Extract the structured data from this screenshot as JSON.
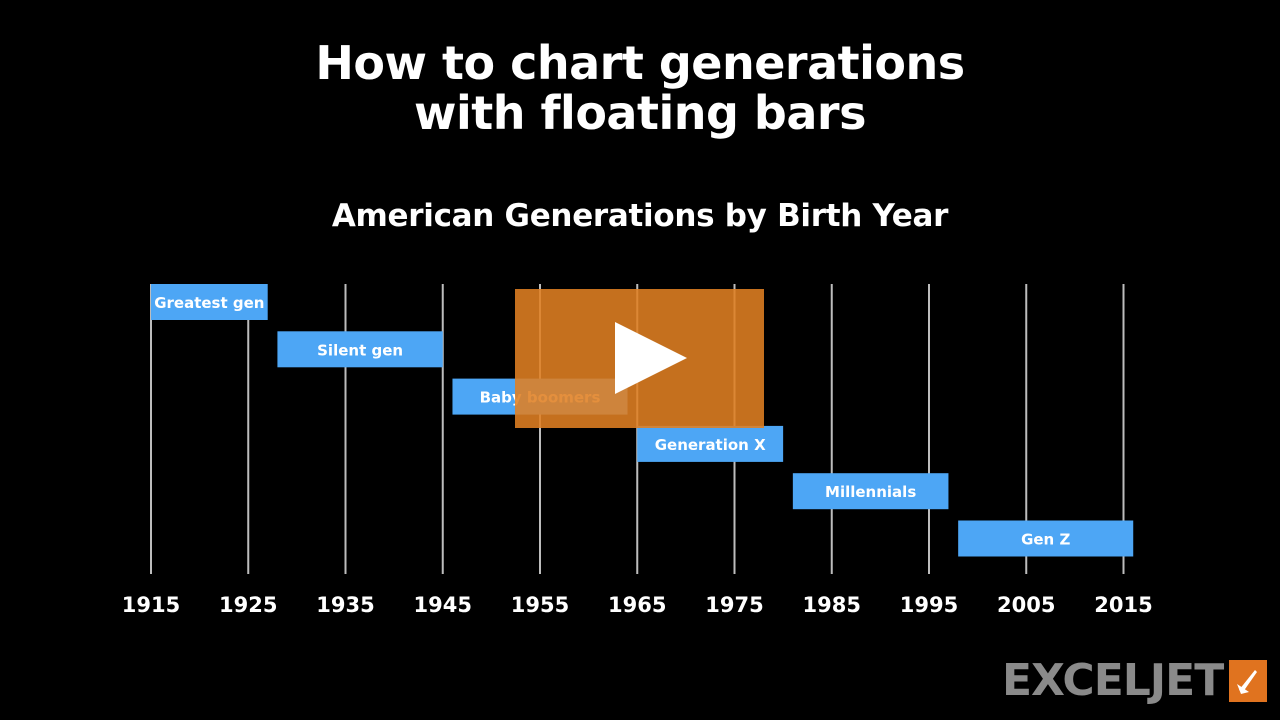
{
  "page": {
    "title_line1": "How to chart generations",
    "title_line2": "with floating bars"
  },
  "chart_data": {
    "type": "bar",
    "orientation": "horizontal-floating",
    "title": "American Generations by Birth Year",
    "categories": [
      "Greatest gen",
      "Silent gen",
      "Baby boomers",
      "Generation X",
      "Millennials",
      "Gen Z"
    ],
    "series": [
      {
        "start": [
          1915,
          1928,
          1946,
          1965,
          1981,
          1998
        ],
        "end": [
          1927,
          1945,
          1964,
          1980,
          1997,
          2016
        ]
      }
    ],
    "x_ticks": [
      1915,
      1925,
      1935,
      1945,
      1955,
      1965,
      1975,
      1985,
      1995,
      2005,
      2015
    ],
    "xlim": [
      1915,
      2015
    ],
    "grid": true,
    "legend": "none",
    "bar_color": "#4da6f5",
    "gridline_color": "#bdbdbd",
    "background": "#000000"
  },
  "overlay": {
    "play_icon": "play-icon",
    "color": "#e08022"
  },
  "branding": {
    "logo_text": "EXCELJET",
    "logo_color": "#8a8a8a",
    "logo_accent": "#e0731f"
  }
}
